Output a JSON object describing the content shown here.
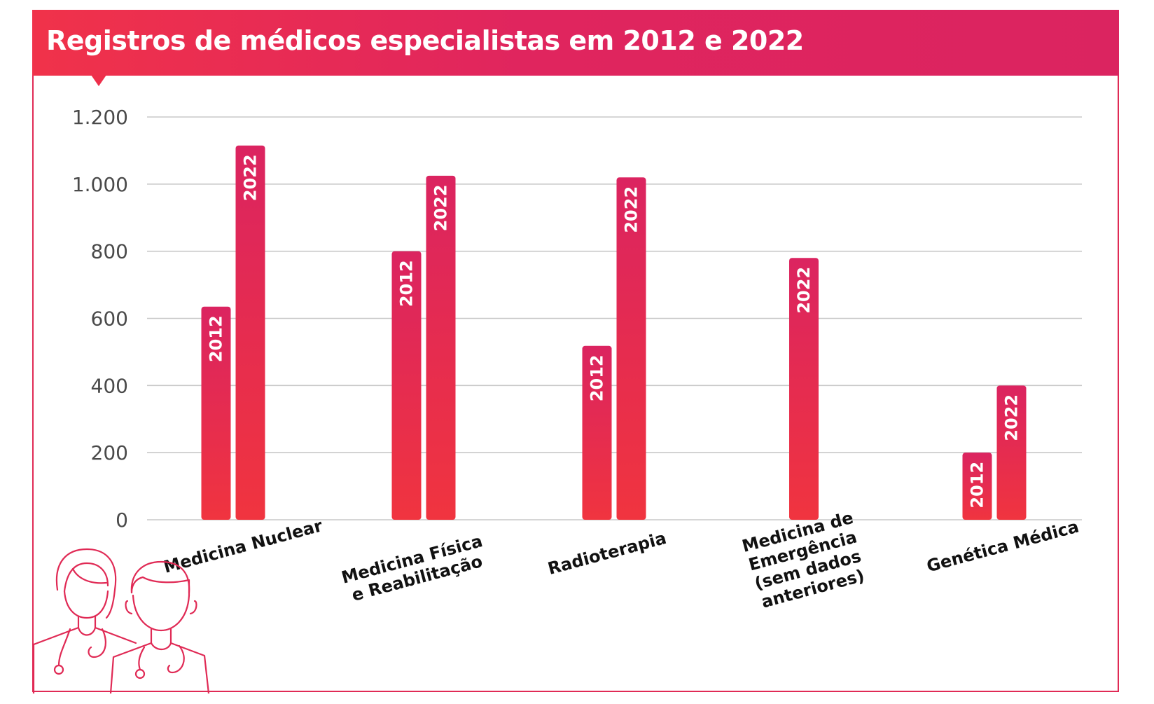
{
  "header": {
    "title": "Registros de médicos especialistas em 2012 e 2022"
  },
  "colors": {
    "accent": "#e02a55",
    "header_start": "#f0324a",
    "header_end": "#db2460",
    "bar_top": "#db2460",
    "bar_bottom": "#f0343f",
    "grid": "#c8c8c8"
  },
  "illustration": {
    "icon": "doctors-icon"
  },
  "chart_data": {
    "type": "bar",
    "title": "Registros de médicos especialistas em 2012 e 2022",
    "xlabel": "",
    "ylabel": "",
    "ylim": [
      0,
      1200
    ],
    "yticks": [
      0,
      200,
      400,
      600,
      800,
      1000,
      1200
    ],
    "ytick_labels": [
      "0",
      "200",
      "400",
      "600",
      "800",
      "1.000",
      "1.200"
    ],
    "grid": true,
    "categories": [
      [
        "Medicina Nuclear"
      ],
      [
        "Medicina Física",
        "e Reabilitação"
      ],
      [
        "Radioterapia"
      ],
      [
        "Medicina de",
        "Emergência",
        "(sem dados",
        "anteriores)"
      ],
      [
        "Genética Médica"
      ]
    ],
    "series": [
      {
        "name": "2012",
        "values": [
          635,
          800,
          518,
          null,
          200
        ]
      },
      {
        "name": "2022",
        "values": [
          1115,
          1025,
          1020,
          780,
          400
        ]
      }
    ]
  }
}
